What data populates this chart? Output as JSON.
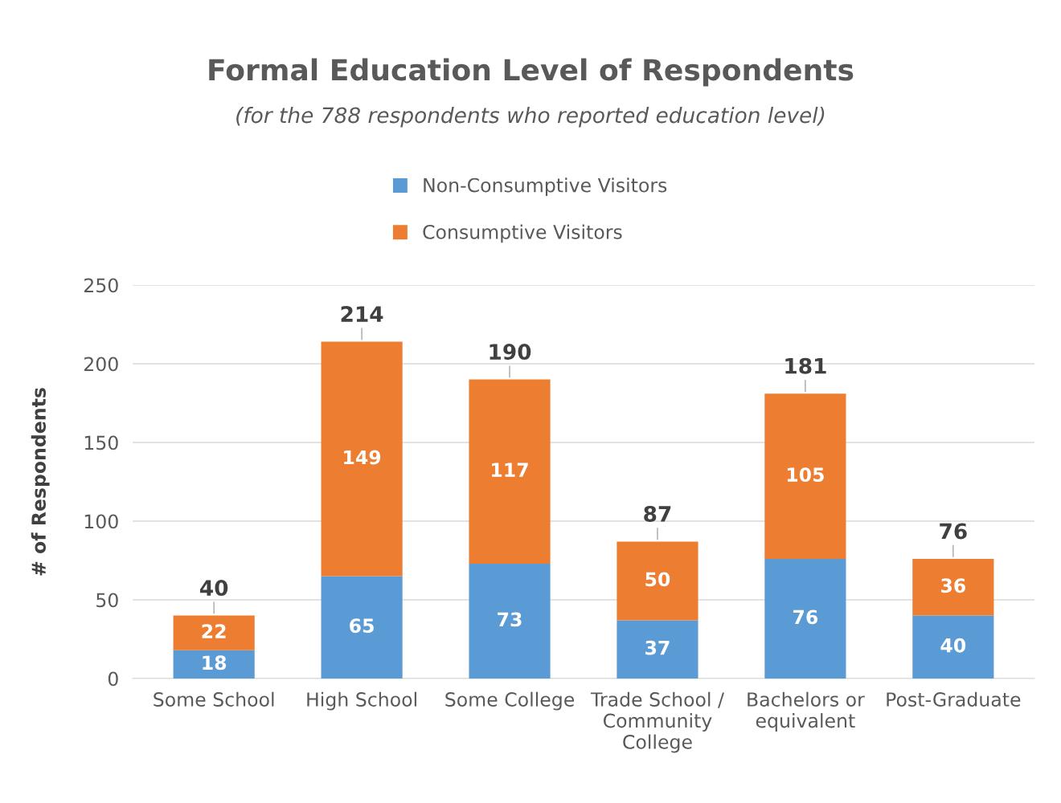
{
  "chart_data": {
    "type": "bar",
    "title": "Formal Education Level of Respondents",
    "subtitle": "(for the 788 respondents who reported education level)",
    "ylabel": "# of Respondents",
    "categories": [
      "Some School",
      "High School",
      "Some College",
      "Trade School /\nCommunity\nCollege",
      "Bachelors or\nequivalent",
      "Post-Graduate"
    ],
    "series": [
      {
        "name": "Non-Consumptive Visitors",
        "color": "#5b9bd5",
        "values": [
          18,
          65,
          73,
          37,
          76,
          40
        ]
      },
      {
        "name": "Consumptive Visitors",
        "color": "#ed7d31",
        "values": [
          22,
          149,
          117,
          50,
          105,
          36
        ]
      }
    ],
    "stacked": true,
    "data_labels": true,
    "totals": [
      "40",
      "214",
      "190",
      "87",
      "181",
      "76"
    ],
    "ylim": [
      0,
      250
    ],
    "yticks": [
      0,
      50,
      100,
      150,
      200,
      250
    ],
    "grid": "y",
    "legend": "top"
  }
}
